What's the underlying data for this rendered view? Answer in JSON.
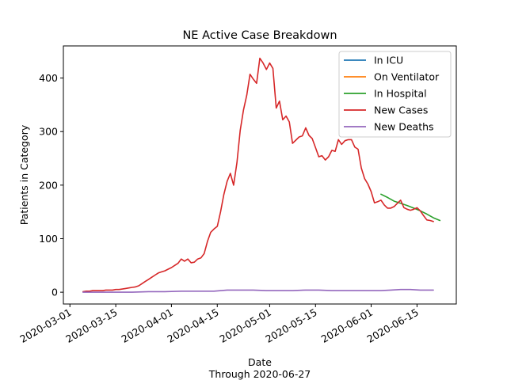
{
  "chart_data": {
    "type": "line",
    "title": "NE Active Case Breakdown",
    "xlabel": "Date",
    "xlabel_sub": "Through 2020-06-27",
    "ylabel": "Patients in Category",
    "x_ticks": [
      "2020-03-01",
      "2020-03-15",
      "2020-04-01",
      "2020-04-15",
      "2020-05-01",
      "2020-05-15",
      "2020-06-01",
      "2020-06-15"
    ],
    "y_ticks": [
      0,
      100,
      200,
      300,
      400
    ],
    "xlim": [
      "2020-02-28",
      "2020-06-27"
    ],
    "ylim": [
      -22,
      460
    ],
    "grid": false,
    "legend_position": "top-right",
    "colors": {
      "In ICU": "#1f77b4",
      "On Ventilator": "#ff7f0e",
      "In Hospital": "#2ca02c",
      "New Cases": "#d62728",
      "New Deaths": "#9467bd"
    },
    "series": [
      {
        "name": "In ICU",
        "points": []
      },
      {
        "name": "On Ventilator",
        "points": []
      },
      {
        "name": "In Hospital",
        "points": [
          [
            "2020-06-04",
            183
          ],
          [
            "2020-06-06",
            177
          ],
          [
            "2020-06-08",
            170
          ],
          [
            "2020-06-10",
            166
          ],
          [
            "2020-06-12",
            162
          ],
          [
            "2020-06-14",
            157
          ],
          [
            "2020-06-16",
            152
          ],
          [
            "2020-06-18",
            146
          ],
          [
            "2020-06-20",
            139
          ],
          [
            "2020-06-22",
            134
          ]
        ]
      },
      {
        "name": "New Cases",
        "points": [
          [
            "2020-03-05",
            1
          ],
          [
            "2020-03-06",
            2
          ],
          [
            "2020-03-07",
            2
          ],
          [
            "2020-03-08",
            3
          ],
          [
            "2020-03-09",
            3
          ],
          [
            "2020-03-10",
            3
          ],
          [
            "2020-03-11",
            3
          ],
          [
            "2020-03-12",
            4
          ],
          [
            "2020-03-13",
            4
          ],
          [
            "2020-03-14",
            4
          ],
          [
            "2020-03-15",
            5
          ],
          [
            "2020-03-16",
            5
          ],
          [
            "2020-03-17",
            6
          ],
          [
            "2020-03-18",
            7
          ],
          [
            "2020-03-19",
            8
          ],
          [
            "2020-03-20",
            9
          ],
          [
            "2020-03-21",
            10
          ],
          [
            "2020-03-22",
            12
          ],
          [
            "2020-03-23",
            16
          ],
          [
            "2020-03-24",
            20
          ],
          [
            "2020-03-25",
            24
          ],
          [
            "2020-03-26",
            28
          ],
          [
            "2020-03-27",
            32
          ],
          [
            "2020-03-28",
            36
          ],
          [
            "2020-03-29",
            38
          ],
          [
            "2020-03-30",
            40
          ],
          [
            "2020-03-31",
            43
          ],
          [
            "2020-04-01",
            46
          ],
          [
            "2020-04-02",
            50
          ],
          [
            "2020-04-03",
            54
          ],
          [
            "2020-04-04",
            62
          ],
          [
            "2020-04-05",
            58
          ],
          [
            "2020-04-06",
            62
          ],
          [
            "2020-04-07",
            55
          ],
          [
            "2020-04-08",
            56
          ],
          [
            "2020-04-09",
            62
          ],
          [
            "2020-04-10",
            64
          ],
          [
            "2020-04-11",
            72
          ],
          [
            "2020-04-12",
            95
          ],
          [
            "2020-04-13",
            112
          ],
          [
            "2020-04-14",
            118
          ],
          [
            "2020-04-15",
            123
          ],
          [
            "2020-04-16",
            150
          ],
          [
            "2020-04-17",
            182
          ],
          [
            "2020-04-18",
            207
          ],
          [
            "2020-04-19",
            222
          ],
          [
            "2020-04-20",
            200
          ],
          [
            "2020-04-21",
            242
          ],
          [
            "2020-04-22",
            302
          ],
          [
            "2020-04-23",
            340
          ],
          [
            "2020-04-24",
            368
          ],
          [
            "2020-04-25",
            407
          ],
          [
            "2020-04-26",
            398
          ],
          [
            "2020-04-27",
            390
          ],
          [
            "2020-04-28",
            437
          ],
          [
            "2020-04-29",
            428
          ],
          [
            "2020-04-30",
            416
          ],
          [
            "2020-05-01",
            428
          ],
          [
            "2020-05-02",
            418
          ],
          [
            "2020-05-03",
            344
          ],
          [
            "2020-05-04",
            357
          ],
          [
            "2020-05-05",
            322
          ],
          [
            "2020-05-06",
            329
          ],
          [
            "2020-05-07",
            318
          ],
          [
            "2020-05-08",
            278
          ],
          [
            "2020-05-09",
            284
          ],
          [
            "2020-05-10",
            290
          ],
          [
            "2020-05-11",
            292
          ],
          [
            "2020-05-12",
            307
          ],
          [
            "2020-05-13",
            293
          ],
          [
            "2020-05-14",
            287
          ],
          [
            "2020-05-15",
            270
          ],
          [
            "2020-05-16",
            253
          ],
          [
            "2020-05-17",
            255
          ],
          [
            "2020-05-18",
            247
          ],
          [
            "2020-05-19",
            253
          ],
          [
            "2020-05-20",
            265
          ],
          [
            "2020-05-21",
            263
          ],
          [
            "2020-05-22",
            285
          ],
          [
            "2020-05-23",
            276
          ],
          [
            "2020-05-24",
            283
          ],
          [
            "2020-05-25",
            285
          ],
          [
            "2020-05-26",
            285
          ],
          [
            "2020-05-27",
            271
          ],
          [
            "2020-05-28",
            267
          ],
          [
            "2020-05-29",
            232
          ],
          [
            "2020-05-30",
            212
          ],
          [
            "2020-05-31",
            202
          ],
          [
            "2020-06-01",
            188
          ],
          [
            "2020-06-02",
            167
          ],
          [
            "2020-06-03",
            169
          ],
          [
            "2020-06-04",
            172
          ],
          [
            "2020-06-05",
            163
          ],
          [
            "2020-06-06",
            157
          ],
          [
            "2020-06-07",
            157
          ],
          [
            "2020-06-08",
            160
          ],
          [
            "2020-06-09",
            166
          ],
          [
            "2020-06-10",
            172
          ],
          [
            "2020-06-11",
            158
          ],
          [
            "2020-06-12",
            155
          ],
          [
            "2020-06-13",
            153
          ],
          [
            "2020-06-14",
            155
          ],
          [
            "2020-06-15",
            158
          ],
          [
            "2020-06-16",
            152
          ],
          [
            "2020-06-17",
            143
          ],
          [
            "2020-06-18",
            135
          ],
          [
            "2020-06-19",
            134
          ],
          [
            "2020-06-20",
            132
          ]
        ]
      },
      {
        "name": "New Deaths",
        "points": [
          [
            "2020-03-05",
            0
          ],
          [
            "2020-03-10",
            0
          ],
          [
            "2020-03-15",
            0
          ],
          [
            "2020-03-20",
            0
          ],
          [
            "2020-03-25",
            1
          ],
          [
            "2020-03-30",
            1
          ],
          [
            "2020-04-04",
            2
          ],
          [
            "2020-04-09",
            2
          ],
          [
            "2020-04-14",
            2
          ],
          [
            "2020-04-18",
            4
          ],
          [
            "2020-04-22",
            4
          ],
          [
            "2020-04-26",
            4
          ],
          [
            "2020-04-30",
            3
          ],
          [
            "2020-05-04",
            3
          ],
          [
            "2020-05-08",
            3
          ],
          [
            "2020-05-12",
            4
          ],
          [
            "2020-05-16",
            4
          ],
          [
            "2020-05-20",
            3
          ],
          [
            "2020-05-24",
            3
          ],
          [
            "2020-05-28",
            3
          ],
          [
            "2020-06-01",
            3
          ],
          [
            "2020-06-04",
            3
          ],
          [
            "2020-06-07",
            4
          ],
          [
            "2020-06-10",
            5
          ],
          [
            "2020-06-13",
            5
          ],
          [
            "2020-06-16",
            4
          ],
          [
            "2020-06-19",
            4
          ],
          [
            "2020-06-20",
            4
          ]
        ]
      }
    ]
  }
}
